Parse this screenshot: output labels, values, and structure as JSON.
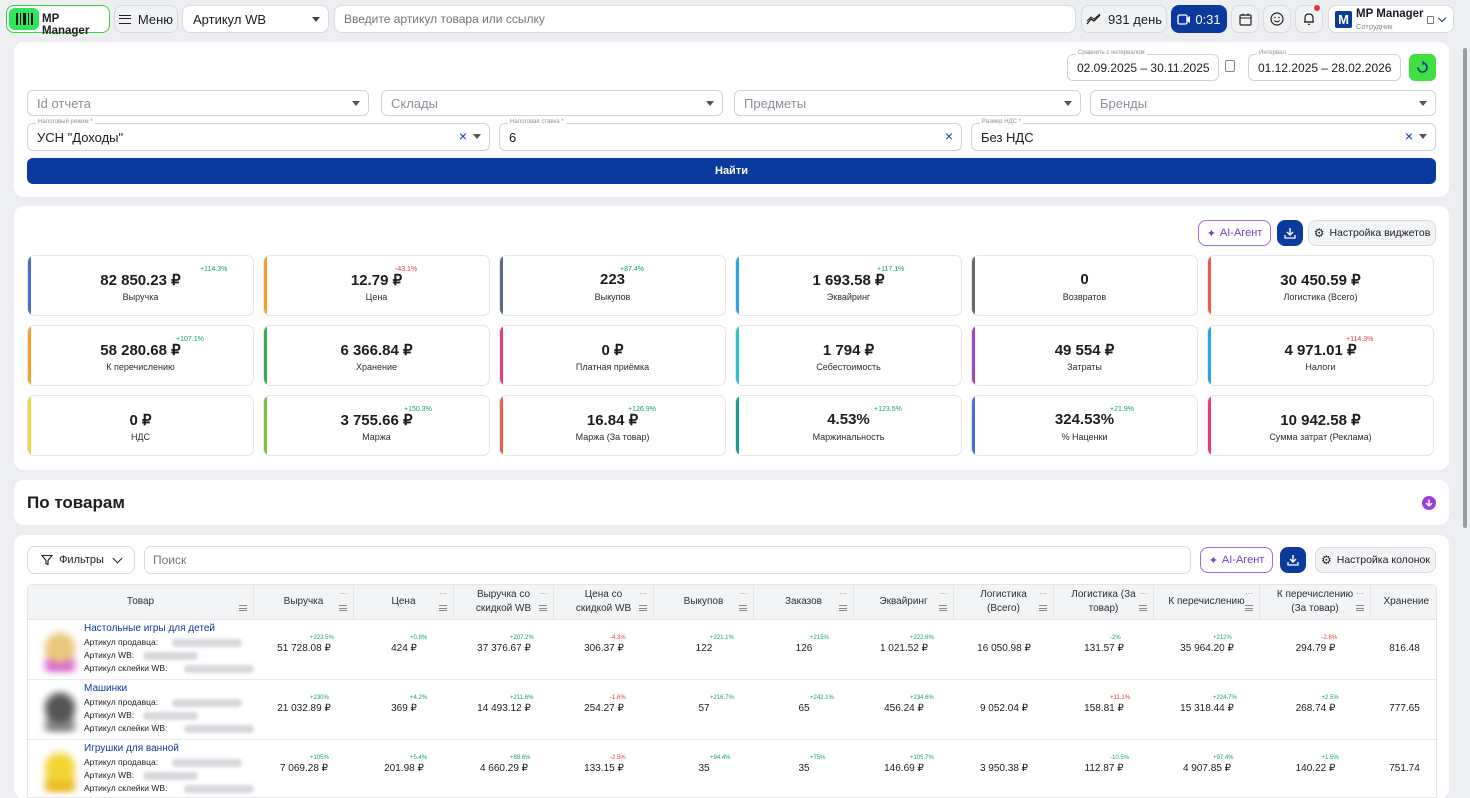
{
  "header": {
    "logo_text": "MP Manager",
    "menu_label": "Меню",
    "article_select": "Артикул WB",
    "search_placeholder": "Введите артикул товара или ссылку",
    "days_label": "931 день",
    "video_label": "0:31",
    "account_name": "MP Manager",
    "account_role": "Сотрудник",
    "account_letter": "M"
  },
  "filters": {
    "compare_label": "Сравнить с интервалом",
    "compare_value": "02.09.2025 – 30.11.2025",
    "interval_label": "Интервал",
    "interval_value": "01.12.2025 – 28.02.2026",
    "report_id": "Id отчета",
    "warehouses": "Склады",
    "subjects": "Предметы",
    "brands": "Бренды",
    "tax_regime_label": "Налоговый режим *",
    "tax_regime_value": "УСН \"Доходы\"",
    "tax_rate_label": "Налоговая ставка *",
    "tax_rate_value": "6",
    "vat_label": "Размер НДС *",
    "vat_value": "Без НДС",
    "find_button": "Найти"
  },
  "widgets": {
    "ai_agent": "AI-Агент",
    "settings": "Настройка виджетов",
    "items": [
      {
        "value": "82 850.23 ₽",
        "label": "Выручка",
        "change": "+114.3%",
        "dir": "up",
        "color": "#4a6fd0"
      },
      {
        "value": "12.79 ₽",
        "label": "Цена",
        "change": "-43.1%",
        "dir": "down",
        "color": "#f4a127"
      },
      {
        "value": "223",
        "label": "Выкупов",
        "change": "+87.4%",
        "dir": "up",
        "color": "#5b6b80"
      },
      {
        "value": "1 693.58 ₽",
        "label": "Эквайринг",
        "change": "+117.1%",
        "dir": "up",
        "color": "#2aa4e6"
      },
      {
        "value": "0",
        "label": "Возвратов",
        "change": "",
        "dir": "up",
        "color": "#6b6b6b"
      },
      {
        "value": "30 450.59 ₽",
        "label": "Логистика (Всего)",
        "change": "",
        "dir": "up",
        "color": "#ef5a4f"
      },
      {
        "value": "58 280.68 ₽",
        "label": "К перечислению",
        "change": "+107.1%",
        "dir": "up",
        "color": "#f4a127"
      },
      {
        "value": "6 366.84 ₽",
        "label": "Хранение",
        "change": "",
        "dir": "up",
        "color": "#3aab55"
      },
      {
        "value": "0 ₽",
        "label": "Платная приёмка",
        "change": "",
        "dir": "up",
        "color": "#e93b78"
      },
      {
        "value": "1 794 ₽",
        "label": "Себестоимость",
        "change": "",
        "dir": "up",
        "color": "#2ec4c4"
      },
      {
        "value": "49 554 ₽",
        "label": "Затраты",
        "change": "",
        "dir": "up",
        "color": "#a742c9"
      },
      {
        "value": "4 971.01 ₽",
        "label": "Налоги",
        "change": "+114.3%",
        "dir": "down",
        "color": "#2aa4e6"
      },
      {
        "value": "0 ₽",
        "label": "НДС",
        "change": "",
        "dir": "up",
        "color": "#f0d43a"
      },
      {
        "value": "3 755.66 ₽",
        "label": "Маржа",
        "change": "+150.3%",
        "dir": "up",
        "color": "#7ac142"
      },
      {
        "value": "16.84 ₽",
        "label": "Маржа (За товар)",
        "change": "+126.9%",
        "dir": "up",
        "color": "#ef5a4f"
      },
      {
        "value": "4.53%",
        "label": "Маржинальность",
        "change": "+123.5%",
        "dir": "up",
        "color": "#1a9e8f"
      },
      {
        "value": "324.53%",
        "label": "% Наценки",
        "change": "+21.9%",
        "dir": "up",
        "color": "#4a6fd0"
      },
      {
        "value": "10 942.58 ₽",
        "label": "Сумма затрат (Реклама)",
        "change": "",
        "dir": "up",
        "color": "#e93b78"
      }
    ]
  },
  "products_section": {
    "title": "По товарам"
  },
  "table": {
    "filters_label": "Фильтры",
    "search_placeholder": "Поиск",
    "ai_agent": "AI-Агент",
    "columns_settings": "Настройка колонок",
    "headers": [
      "Товар",
      "Выручка",
      "Цена",
      "Выручка со скидкой WB",
      "Цена со скидкой WB",
      "Выкупов",
      "Заказов",
      "Эквайринг",
      "Логистика (Всего)",
      "Логистика (За товар)",
      "К перечислению",
      "К перечислению (За товар)",
      "Хранение"
    ],
    "labels": {
      "seller_article": "Артикул продавца:",
      "wb_article": "Артикул WB:",
      "glue_article": "Артикул склейки WB:"
    },
    "rows": [
      {
        "name": "Настольные игры для детей",
        "cells": [
          "51 728.08 ₽",
          "424 ₽",
          "37 376.67 ₽",
          "306.37 ₽",
          "122",
          "126",
          "1 021.52 ₽",
          "16 050.98 ₽",
          "131.57 ₽",
          "35 964.20 ₽",
          "294.79 ₽",
          "816.48"
        ],
        "changes": [
          "+223.5%",
          "+0.8%",
          "+207.2%",
          "-4.3%",
          "+221.1%",
          "+215%",
          "+222.6%",
          "",
          "-2%",
          "+212%",
          "-2.8%",
          ""
        ],
        "dirs": [
          "up",
          "up",
          "up",
          "down",
          "up",
          "up",
          "up",
          "up",
          "up",
          "up",
          "down",
          "up"
        ]
      },
      {
        "name": "Машинки",
        "cells": [
          "21 032.89 ₽",
          "369 ₽",
          "14 493.12 ₽",
          "254.27 ₽",
          "57",
          "65",
          "456.24 ₽",
          "9 052.04 ₽",
          "158.81 ₽",
          "15 318.44 ₽",
          "268.74 ₽",
          "777.65"
        ],
        "changes": [
          "+230%",
          "+4.2%",
          "+211.6%",
          "-1.6%",
          "+216.7%",
          "+242.1%",
          "+234.6%",
          "",
          "+11.1%",
          "+224.7%",
          "+2.5%",
          ""
        ],
        "dirs": [
          "up",
          "up",
          "up",
          "down",
          "up",
          "up",
          "up",
          "up",
          "down",
          "up",
          "up",
          "up"
        ]
      },
      {
        "name": "Игрушки для ванной",
        "cells": [
          "7 069.28 ₽",
          "201.98 ₽",
          "4 660.29 ₽",
          "133.15 ₽",
          "35",
          "35",
          "146.69 ₽",
          "3 950.38 ₽",
          "112.87 ₽",
          "4 907.85 ₽",
          "140.22 ₽",
          "751.74"
        ],
        "changes": [
          "+105%",
          "+5.4%",
          "+89.6%",
          "-2.5%",
          "+94.4%",
          "+75%",
          "+105.7%",
          "",
          "-10.5%",
          "+97.4%",
          "+1.5%",
          ""
        ],
        "dirs": [
          "up",
          "up",
          "up",
          "down",
          "up",
          "up",
          "up",
          "up",
          "up",
          "up",
          "up",
          "up"
        ]
      }
    ]
  }
}
